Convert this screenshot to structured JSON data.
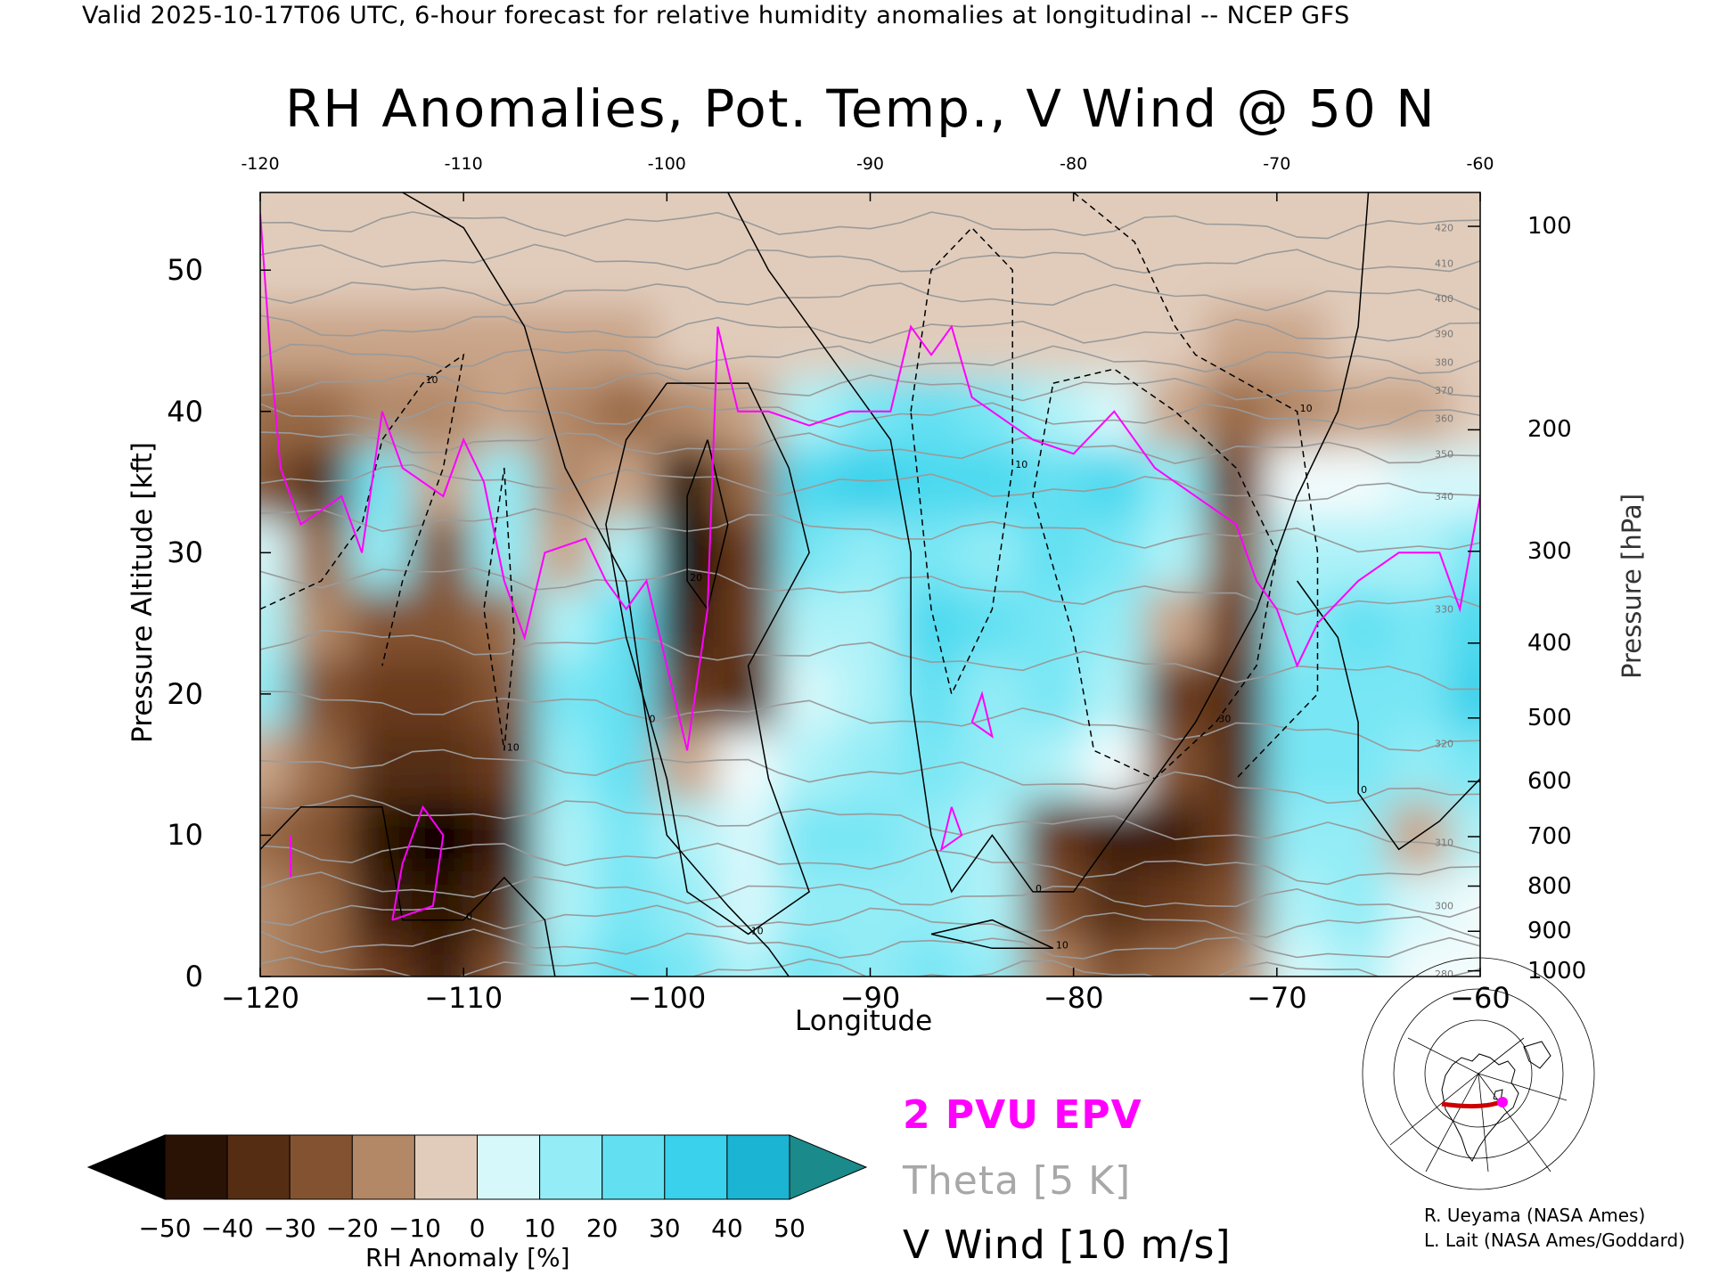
{
  "header": "Valid 2025-10-17T06 UTC, 6-hour forecast for relative humidity anomalies at longitudinal -- NCEP GFS",
  "chart_data": {
    "type": "heatmap",
    "title": "RH Anomalies, Pot. Temp., V Wind @ 50 N",
    "xlabel": "Longitude",
    "ylabel_left": "Pressure Altitude [kft]",
    "ylabel_right": "Pressure [hPa]",
    "xlim": [
      -120,
      -60
    ],
    "ylim": [
      0,
      55.5
    ],
    "x_ticks": [
      "−120",
      "−110",
      "−100",
      "−90",
      "−80",
      "−70",
      "−60"
    ],
    "x_tick_values": [
      -120,
      -110,
      -100,
      -90,
      -80,
      -70,
      -60
    ],
    "top_ticks": [
      "-120",
      "-110",
      "-100",
      "-90",
      "-80",
      "-70",
      "-60"
    ],
    "y_ticks": [
      "0",
      "10",
      "20",
      "30",
      "40",
      "50"
    ],
    "y_tick_values": [
      0,
      10,
      20,
      30,
      40,
      50
    ],
    "pressure_ticks": [
      "100",
      "200",
      "300",
      "400",
      "500",
      "600",
      "700",
      "800",
      "900",
      "1000"
    ],
    "pressure_tick_kft": [
      53.1,
      38.7,
      30.1,
      23.6,
      18.3,
      13.8,
      9.9,
      6.4,
      3.2,
      0.4
    ],
    "colorbar": {
      "label": "RH Anomaly [%]",
      "ticks": [
        "−50",
        "−40",
        "−30",
        "−20",
        "−10",
        "0",
        "10",
        "20",
        "30",
        "40",
        "50"
      ],
      "tick_values": [
        -50,
        -40,
        -30,
        -20,
        -10,
        0,
        10,
        20,
        30,
        40,
        50
      ],
      "colors": [
        "#000000",
        "#3a1a08",
        "#5e3318",
        "#82532f",
        "#a8805e",
        "#cfae94",
        "#ecd9cc",
        "#dff9fb",
        "#a5f1f7",
        "#6de4f2",
        "#33d3ec",
        "#1dbedc",
        "#0d8fae",
        "#1a8a8a"
      ]
    },
    "anomaly_grid": {
      "x": [
        -120,
        -117,
        -114,
        -111,
        -108,
        -105,
        -102,
        -99,
        -96,
        -93,
        -90,
        -87,
        -84,
        -81,
        -78,
        -75,
        -72,
        -69,
        -66,
        -63,
        -60
      ],
      "y": [
        0,
        5,
        10,
        15,
        20,
        25,
        30,
        35,
        40,
        45,
        50,
        55
      ],
      "values": [
        [
          -15,
          -20,
          -30,
          -40,
          -25,
          15,
          25,
          20,
          10,
          20,
          15,
          20,
          15,
          -15,
          -25,
          -20,
          -15,
          5,
          10,
          0,
          0
        ],
        [
          -15,
          -20,
          -40,
          -45,
          -35,
          10,
          20,
          15,
          5,
          15,
          15,
          15,
          10,
          -25,
          -35,
          -30,
          -25,
          10,
          15,
          5,
          0
        ],
        [
          -20,
          -25,
          -45,
          -50,
          -40,
          10,
          20,
          10,
          5,
          20,
          20,
          15,
          10,
          -30,
          -40,
          -40,
          -30,
          15,
          15,
          -10,
          10
        ],
        [
          -10,
          -20,
          -35,
          -35,
          -30,
          15,
          25,
          -10,
          0,
          10,
          15,
          20,
          15,
          10,
          0,
          -25,
          -35,
          20,
          20,
          15,
          20
        ],
        [
          15,
          -25,
          -30,
          -30,
          -25,
          20,
          25,
          -30,
          -35,
          5,
          10,
          25,
          15,
          20,
          10,
          -30,
          -35,
          20,
          20,
          20,
          35
        ],
        [
          10,
          -15,
          -25,
          -25,
          -20,
          10,
          25,
          -40,
          -30,
          10,
          10,
          30,
          25,
          20,
          15,
          -10,
          -30,
          15,
          25,
          20,
          30
        ],
        [
          5,
          -20,
          15,
          -25,
          15,
          -10,
          10,
          -50,
          -30,
          20,
          15,
          20,
          15,
          25,
          20,
          10,
          -25,
          10,
          10,
          10,
          20
        ],
        [
          -25,
          -35,
          20,
          -10,
          15,
          -15,
          -10,
          -45,
          -20,
          30,
          35,
          30,
          30,
          25,
          30,
          15,
          -30,
          0,
          0,
          5,
          5
        ],
        [
          -20,
          -20,
          -15,
          -15,
          -10,
          -15,
          -20,
          -15,
          -10,
          10,
          20,
          25,
          20,
          10,
          5,
          -10,
          -20,
          -15,
          -10,
          -10,
          -5
        ],
        [
          -10,
          -10,
          -10,
          -10,
          -10,
          -10,
          -10,
          -5,
          -5,
          -5,
          -5,
          -5,
          -5,
          -5,
          -5,
          -5,
          -10,
          -10,
          -5,
          -5,
          -5
        ],
        [
          -5,
          -5,
          -5,
          -5,
          -5,
          -5,
          -5,
          -5,
          -5,
          -5,
          -5,
          -5,
          -5,
          -5,
          -5,
          -5,
          -5,
          -5,
          -5,
          -5,
          -5
        ],
        [
          -5,
          -5,
          -5,
          -5,
          -5,
          -5,
          -5,
          -5,
          -5,
          -5,
          -5,
          -5,
          -5,
          -5,
          -5,
          -5,
          -5,
          -5,
          -5,
          -5,
          -5
        ]
      ]
    },
    "theta_levels": [
      {
        "y": [
          0.5,
          0.4,
          0.2
        ],
        "label": "280"
      },
      {
        "y": [
          2.5,
          2.2,
          1.8
        ],
        "label": ""
      },
      {
        "y": [
          4.5,
          4.0,
          3.5
        ],
        "label": ""
      },
      {
        "y": [
          6.5,
          6.0,
          5.0
        ],
        "label": "300"
      },
      {
        "y": [
          9.0,
          8.5,
          7.0
        ],
        "label": ""
      },
      {
        "y": [
          12.0,
          11.5,
          9.5
        ],
        "label": "310"
      },
      {
        "y": [
          15.5,
          15.0,
          12.5
        ],
        "label": ""
      },
      {
        "y": [
          19.5,
          19.0,
          16.5
        ],
        "label": "320"
      },
      {
        "y": [
          24.0,
          23.0,
          21.0
        ],
        "label": ""
      },
      {
        "y": [
          28.5,
          28.0,
          26.0
        ],
        "label": "330"
      },
      {
        "y": [
          32.5,
          32.0,
          30.5
        ],
        "label": ""
      },
      {
        "y": [
          35.5,
          35.0,
          34.0
        ],
        "label": "340"
      },
      {
        "y": [
          38.0,
          37.5,
          37.0
        ],
        "label": "350"
      },
      {
        "y": [
          40.0,
          39.8,
          39.5
        ],
        "label": "360"
      },
      {
        "y": [
          42.0,
          41.8,
          41.5
        ],
        "label": "370"
      },
      {
        "y": [
          44.0,
          43.8,
          43.5
        ],
        "label": "380"
      },
      {
        "y": [
          46.0,
          45.8,
          45.5
        ],
        "label": "390"
      },
      {
        "y": [
          48.5,
          48.2,
          48.0
        ],
        "label": "400"
      },
      {
        "y": [
          51.0,
          50.7,
          50.5
        ],
        "label": "410"
      },
      {
        "y": [
          53.5,
          53.2,
          53.0
        ],
        "label": "420"
      }
    ],
    "v_wind_contours": [
      {
        "style": "solid",
        "label": "0",
        "points": [
          [
            -120,
            9
          ],
          [
            -118,
            12
          ],
          [
            -114,
            12
          ],
          [
            -113,
            4
          ],
          [
            -110,
            4
          ],
          [
            -108,
            7
          ],
          [
            -106,
            4
          ],
          [
            -105.5,
            0
          ]
        ]
      },
      {
        "style": "solid",
        "label": "0",
        "points": [
          [
            -113,
            55.5
          ],
          [
            -110,
            53
          ],
          [
            -107,
            46
          ],
          [
            -105,
            36
          ],
          [
            -102,
            28
          ],
          [
            -101,
            18
          ],
          [
            -100,
            10
          ],
          [
            -97,
            5
          ],
          [
            -95,
            2
          ],
          [
            -94,
            0
          ]
        ]
      },
      {
        "style": "solid",
        "label": "0",
        "points": [
          [
            -97,
            55.5
          ],
          [
            -95,
            50
          ],
          [
            -92,
            44
          ],
          [
            -89,
            38
          ],
          [
            -88,
            30
          ],
          [
            -88,
            20
          ],
          [
            -87,
            10
          ],
          [
            -86,
            6
          ],
          [
            -84,
            10
          ],
          [
            -82,
            6
          ],
          [
            -80,
            6
          ],
          [
            -77,
            12
          ],
          [
            -74,
            18
          ],
          [
            -71,
            26
          ],
          [
            -69,
            34
          ],
          [
            -67,
            40
          ],
          [
            -66,
            46
          ],
          [
            -65.5,
            55.5
          ]
        ]
      },
      {
        "style": "solid",
        "label": "0",
        "points": [
          [
            -60,
            14
          ],
          [
            -62,
            11
          ],
          [
            -64,
            9
          ],
          [
            -66,
            13
          ],
          [
            -66,
            18
          ],
          [
            -67,
            24
          ],
          [
            -69,
            28
          ]
        ]
      },
      {
        "style": "solid",
        "label": "10",
        "points": [
          [
            -100,
            42
          ],
          [
            -96,
            42
          ],
          [
            -94,
            36
          ],
          [
            -93,
            30
          ],
          [
            -96,
            22
          ],
          [
            -95,
            14
          ],
          [
            -93,
            6
          ],
          [
            -96,
            3
          ],
          [
            -99,
            6
          ],
          [
            -100,
            14
          ],
          [
            -102,
            24
          ],
          [
            -103,
            32
          ],
          [
            -102,
            38
          ],
          [
            -100,
            42
          ]
        ]
      },
      {
        "style": "solid",
        "label": "10",
        "points": [
          [
            -87,
            3
          ],
          [
            -84,
            2
          ],
          [
            -81,
            2
          ],
          [
            -84,
            4
          ],
          [
            -87,
            3
          ]
        ]
      },
      {
        "style": "solid",
        "label": "20",
        "points": [
          [
            -98,
            38
          ],
          [
            -97,
            32
          ],
          [
            -98,
            26
          ],
          [
            -99,
            28
          ],
          [
            -99,
            34
          ],
          [
            -98,
            38
          ]
        ]
      },
      {
        "style": "dashed",
        "label": "10",
        "points": [
          [
            -120,
            26
          ],
          [
            -117,
            28
          ],
          [
            -115,
            32
          ],
          [
            -114,
            38
          ],
          [
            -112,
            42
          ],
          [
            -110,
            44
          ],
          [
            -111,
            36
          ],
          [
            -113,
            28
          ],
          [
            -114,
            22
          ]
        ]
      },
      {
        "style": "dashed",
        "label": "10",
        "points": [
          [
            -108,
            36
          ],
          [
            -107.5,
            24
          ],
          [
            -108,
            16
          ],
          [
            -109,
            26
          ],
          [
            -108,
            36
          ]
        ]
      },
      {
        "style": "dashed",
        "label": "10",
        "points": [
          [
            -88,
            40
          ],
          [
            -87,
            50
          ],
          [
            -85,
            53
          ],
          [
            -83,
            50
          ],
          [
            -83,
            36
          ],
          [
            -84,
            26
          ],
          [
            -86,
            20
          ],
          [
            -87,
            26
          ],
          [
            -88,
            40
          ]
        ]
      },
      {
        "style": "dashed",
        "label": "30",
        "points": [
          [
            -81,
            42
          ],
          [
            -78,
            43
          ],
          [
            -75,
            40
          ],
          [
            -72,
            36
          ],
          [
            -70,
            30
          ],
          [
            -71,
            22
          ],
          [
            -73,
            18
          ],
          [
            -76,
            14
          ],
          [
            -79,
            16
          ],
          [
            -80,
            24
          ],
          [
            -82,
            34
          ],
          [
            -81,
            42
          ]
        ]
      },
      {
        "style": "dashed",
        "label": "10",
        "points": [
          [
            -80,
            55.5
          ],
          [
            -77,
            52
          ],
          [
            -75,
            46
          ],
          [
            -74,
            44
          ],
          [
            -69,
            40
          ],
          [
            -68,
            30
          ],
          [
            -68,
            20
          ],
          [
            -72,
            14
          ]
        ]
      }
    ],
    "epv_2pvu": [
      [
        [
          -120,
          54
        ],
        [
          -119.5,
          44
        ],
        [
          -119,
          36
        ],
        [
          -118,
          32
        ],
        [
          -116,
          34
        ],
        [
          -115,
          30
        ],
        [
          -114,
          40
        ],
        [
          -113,
          36
        ],
        [
          -111,
          34
        ],
        [
          -110,
          38
        ],
        [
          -109,
          35
        ],
        [
          -108,
          28
        ],
        [
          -107,
          24
        ],
        [
          -106,
          30
        ],
        [
          -104,
          31
        ],
        [
          -103,
          28
        ],
        [
          -102,
          26
        ],
        [
          -101,
          28
        ],
        [
          -100,
          22
        ],
        [
          -99,
          16
        ],
        [
          -98,
          26
        ],
        [
          -97.5,
          46
        ],
        [
          -96.5,
          40
        ],
        [
          -95,
          40
        ],
        [
          -93,
          39
        ],
        [
          -91,
          40
        ],
        [
          -89,
          40
        ],
        [
          -88,
          46
        ],
        [
          -87,
          44
        ],
        [
          -86,
          46
        ],
        [
          -85,
          41
        ],
        [
          -84,
          40
        ],
        [
          -82,
          38
        ],
        [
          -80,
          37
        ],
        [
          -78,
          40
        ],
        [
          -76,
          36
        ],
        [
          -74,
          34
        ],
        [
          -72,
          32
        ],
        [
          -71,
          28
        ],
        [
          -70,
          26
        ],
        [
          -69,
          22
        ],
        [
          -68,
          25
        ],
        [
          -66,
          28
        ],
        [
          -64,
          30
        ],
        [
          -62,
          30
        ],
        [
          -61,
          26
        ],
        [
          -60,
          34
        ]
      ],
      [
        [
          -113.5,
          4
        ],
        [
          -113,
          8
        ],
        [
          -112,
          12
        ],
        [
          -111,
          10
        ],
        [
          -111.5,
          5
        ],
        [
          -113.5,
          4
        ]
      ],
      [
        [
          -85,
          18
        ],
        [
          -84.5,
          20
        ],
        [
          -84,
          17
        ],
        [
          -85,
          18
        ]
      ],
      [
        [
          -86,
          12
        ],
        [
          -85.5,
          10
        ],
        [
          -86.5,
          9
        ],
        [
          -86,
          12
        ]
      ],
      [
        [
          -118.5,
          10
        ],
        [
          -118.5,
          7
        ]
      ]
    ],
    "legend": [
      {
        "text": "2 PVU EPV",
        "color": "#ff00ff"
      },
      {
        "text": "Theta [5 K]",
        "color": "#a8a8a8"
      },
      {
        "text": "V Wind [10 m/s]",
        "color": "#000000"
      }
    ],
    "credits": [
      "R. Ueyama (NASA Ames)",
      "L. Lait (NASA Ames/Goddard)"
    ]
  }
}
